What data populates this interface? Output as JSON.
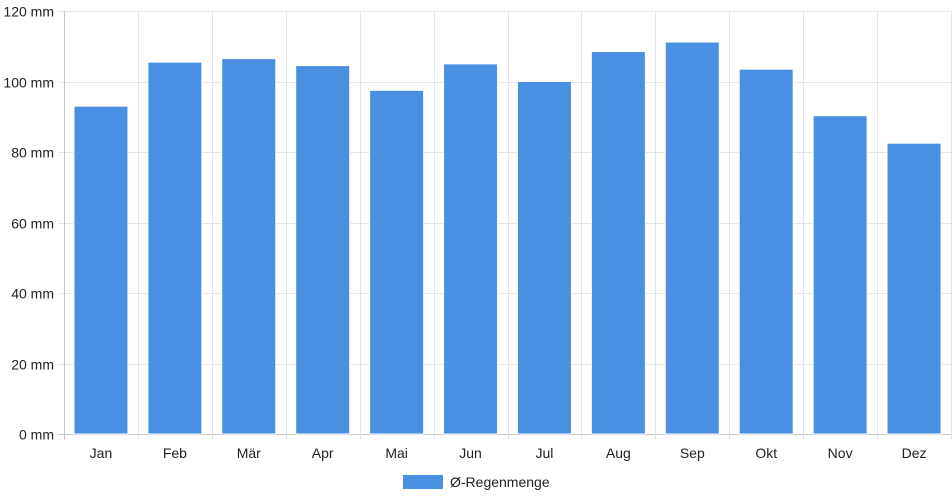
{
  "chart_data": {
    "type": "bar",
    "categories": [
      "Jan",
      "Feb",
      "Mär",
      "Apr",
      "Mai",
      "Jun",
      "Jul",
      "Aug",
      "Sep",
      "Okt",
      "Nov",
      "Dez"
    ],
    "series": [
      {
        "name": "Ø-Regenmenge",
        "values": [
          93,
          105.5,
          106.5,
          104.5,
          97.5,
          105,
          100,
          108.5,
          111.2,
          103.5,
          90.3,
          82.5
        ],
        "color": "#4a90e2"
      }
    ],
    "yticks": [
      "0 mm",
      "20 mm",
      "40 mm",
      "60 mm",
      "80 mm",
      "100 mm",
      "120 mm"
    ],
    "ylim": [
      0,
      120
    ],
    "ytick_step": 20,
    "grid": true,
    "legend_position": "bottom-center",
    "colors": {
      "grid": "#e6e6e6",
      "axis": "#c8c8c8",
      "bar_border": "#ffffff"
    }
  }
}
